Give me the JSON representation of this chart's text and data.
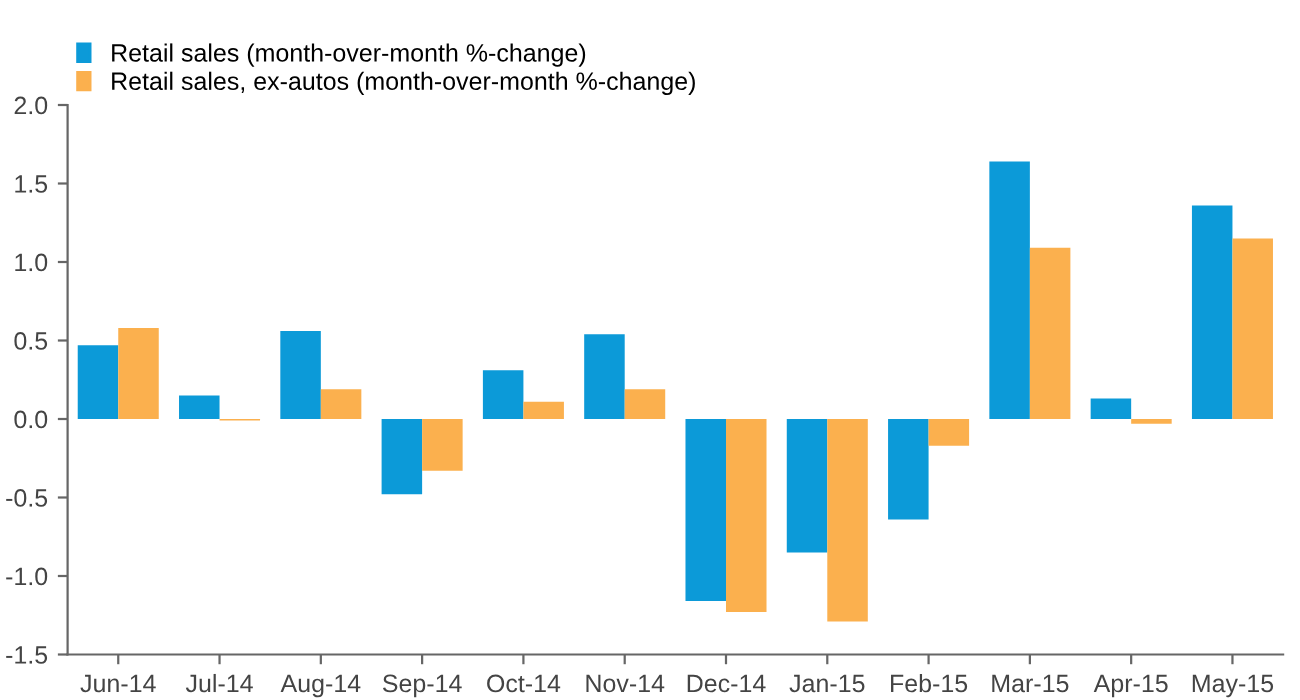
{
  "chart_data": {
    "type": "bar",
    "categories": [
      "Jun-14",
      "Jul-14",
      "Aug-14",
      "Sep-14",
      "Oct-14",
      "Nov-14",
      "Dec-14",
      "Jan-15",
      "Feb-15",
      "Mar-15",
      "Apr-15",
      "May-15"
    ],
    "series": [
      {
        "name": "Retail sales (month-over-month %-change)",
        "color": "#0c9ad8",
        "values": [
          0.47,
          0.15,
          0.56,
          -0.48,
          0.31,
          0.54,
          -1.16,
          -0.85,
          -0.64,
          1.64,
          0.13,
          1.36
        ]
      },
      {
        "name": "Retail sales, ex-autos (month-over-month %-change)",
        "color": "#fbb04e",
        "values": [
          0.58,
          -0.01,
          0.19,
          -0.33,
          0.11,
          0.19,
          -1.23,
          -1.29,
          -0.17,
          1.09,
          -0.03,
          1.15
        ]
      }
    ],
    "ylim": [
      -1.5,
      2.0
    ],
    "yticks": [
      -1.5,
      {
        "value": -1,
        "label": "-1.0"
      },
      -0.5,
      {
        "value": 0,
        "label": "0.0"
      },
      0.5,
      {
        "value": 1,
        "label": "1.0"
      },
      1.5,
      {
        "value": 2,
        "label": "2.0"
      }
    ],
    "grid": false,
    "legend": "top left"
  }
}
